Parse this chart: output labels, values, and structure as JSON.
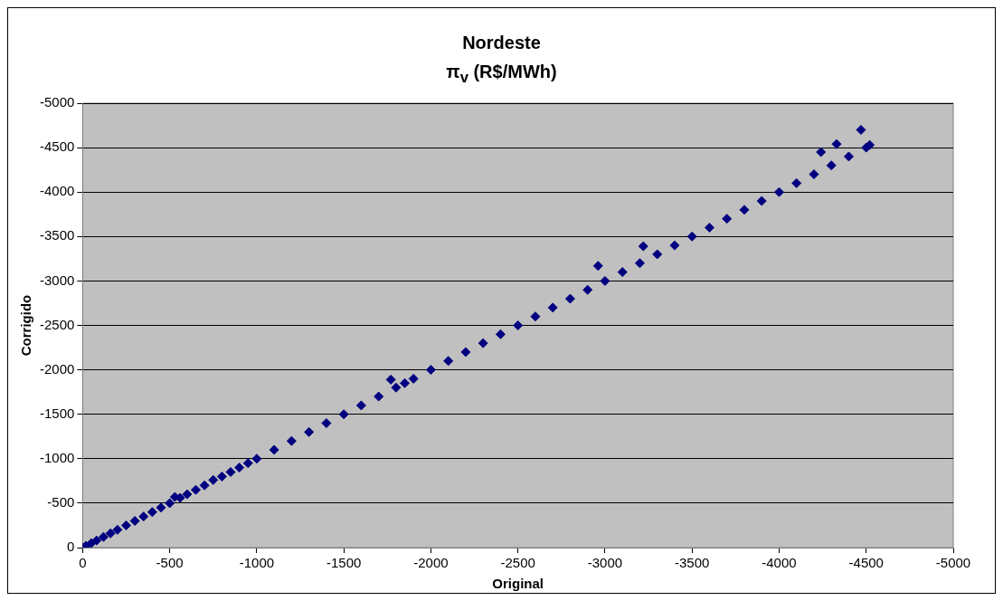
{
  "chart_data": {
    "type": "scatter",
    "title": "Nordeste",
    "subtitle": "π$_{v}$ (R$/MWh)",
    "xlabel": "Original",
    "ylabel": "Corrigido",
    "xlim": [
      0,
      -5000
    ],
    "ylim": [
      0,
      -5000
    ],
    "xticks": [
      0,
      -500,
      -1000,
      -1500,
      -2000,
      -2500,
      -3000,
      -3500,
      -4000,
      -4500,
      -5000
    ],
    "yticks": [
      0,
      -500,
      -1000,
      -1500,
      -2000,
      -2500,
      -3000,
      -3500,
      -4000,
      -4500,
      -5000
    ],
    "grid": "y",
    "marker": "diamond",
    "legend": false,
    "series": [
      {
        "color": "#000080",
        "x": [
          0,
          -20,
          -50,
          -80,
          -120,
          -160,
          -200,
          -250,
          -300,
          -350,
          -400,
          -450,
          -500,
          -530,
          -560,
          -600,
          -650,
          -700,
          -750,
          -800,
          -850,
          -900,
          -950,
          -1000,
          -1100,
          -1200,
          -1300,
          -1400,
          -1500,
          -1600,
          -1700,
          -1770,
          -1800,
          -1850,
          -1900,
          -2000,
          -2100,
          -2200,
          -2300,
          -2400,
          -2500,
          -2600,
          -2700,
          -2800,
          -2900,
          -2960,
          -3000,
          -3100,
          -3200,
          -3220,
          -3300,
          -3400,
          -3500,
          -3600,
          -3700,
          -3800,
          -3900,
          -4000,
          -4100,
          -4200,
          -4240,
          -4300,
          -4330,
          -4400,
          -4470,
          -4500,
          -4520
        ],
        "values": [
          0,
          -20,
          -50,
          -80,
          -120,
          -160,
          -200,
          -250,
          -300,
          -350,
          -400,
          -450,
          -500,
          -570,
          -560,
          -600,
          -650,
          -700,
          -760,
          -800,
          -850,
          -900,
          -950,
          -1000,
          -1100,
          -1200,
          -1300,
          -1400,
          -1500,
          -1600,
          -1700,
          -1890,
          -1800,
          -1850,
          -1900,
          -2000,
          -2100,
          -2200,
          -2300,
          -2400,
          -2500,
          -2600,
          -2700,
          -2800,
          -2900,
          -3170,
          -3000,
          -3100,
          -3200,
          -3390,
          -3300,
          -3400,
          -3500,
          -3600,
          -3700,
          -3800,
          -3900,
          -4000,
          -4100,
          -4200,
          -4450,
          -4300,
          -4540,
          -4400,
          -4700,
          -4500,
          -4530
        ]
      }
    ]
  }
}
